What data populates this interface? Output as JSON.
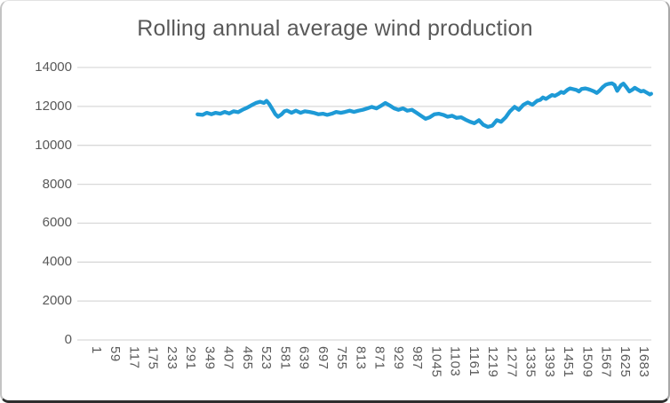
{
  "chart_data": {
    "type": "line",
    "title": "Rolling annual average wind production",
    "xlabel": "",
    "ylabel": "",
    "legend": "none",
    "grid": "horizontal",
    "line_color": "#1E9AD6",
    "grid_color": "#D9D9D9",
    "axis_text_color": "#595959",
    "title_color": "#595959",
    "x_axis": {
      "type": "category",
      "count": 1740,
      "tick_labels": [
        "1",
        "59",
        "117",
        "175",
        "233",
        "291",
        "349",
        "407",
        "465",
        "523",
        "581",
        "639",
        "697",
        "755",
        "813",
        "871",
        "929",
        "987",
        "1045",
        "1103",
        "1161",
        "1219",
        "1277",
        "1335",
        "1393",
        "1451",
        "1509",
        "1567",
        "1625",
        "1683"
      ]
    },
    "y_axis": {
      "min": 0,
      "max": 14000,
      "step": 2000,
      "tick_labels": [
        "0",
        "2000",
        "4000",
        "6000",
        "8000",
        "10000",
        "12000",
        "14000"
      ]
    },
    "series": [
      {
        "name": "Rolling annual average wind production",
        "points": [
          [
            365,
            11590
          ],
          [
            380,
            11565
          ],
          [
            393,
            11670
          ],
          [
            407,
            11595
          ],
          [
            420,
            11670
          ],
          [
            434,
            11625
          ],
          [
            447,
            11715
          ],
          [
            461,
            11640
          ],
          [
            474,
            11745
          ],
          [
            488,
            11700
          ],
          [
            501,
            11825
          ],
          [
            515,
            11930
          ],
          [
            528,
            12055
          ],
          [
            542,
            12175
          ],
          [
            555,
            12240
          ],
          [
            566,
            12175
          ],
          [
            574,
            12285
          ],
          [
            582,
            12130
          ],
          [
            593,
            11825
          ],
          [
            601,
            11595
          ],
          [
            609,
            11470
          ],
          [
            620,
            11595
          ],
          [
            628,
            11745
          ],
          [
            636,
            11790
          ],
          [
            650,
            11670
          ],
          [
            663,
            11780
          ],
          [
            677,
            11670
          ],
          [
            690,
            11745
          ],
          [
            704,
            11715
          ],
          [
            717,
            11670
          ],
          [
            731,
            11595
          ],
          [
            745,
            11625
          ],
          [
            758,
            11565
          ],
          [
            772,
            11625
          ],
          [
            785,
            11715
          ],
          [
            799,
            11670
          ],
          [
            812,
            11715
          ],
          [
            826,
            11780
          ],
          [
            839,
            11715
          ],
          [
            853,
            11780
          ],
          [
            866,
            11825
          ],
          [
            880,
            11900
          ],
          [
            893,
            11975
          ],
          [
            907,
            11900
          ],
          [
            920,
            12020
          ],
          [
            934,
            12175
          ],
          [
            947,
            12055
          ],
          [
            961,
            11900
          ],
          [
            974,
            11825
          ],
          [
            988,
            11900
          ],
          [
            1001,
            11780
          ],
          [
            1015,
            11825
          ],
          [
            1029,
            11670
          ],
          [
            1042,
            11520
          ],
          [
            1056,
            11365
          ],
          [
            1069,
            11440
          ],
          [
            1083,
            11595
          ],
          [
            1096,
            11625
          ],
          [
            1110,
            11565
          ],
          [
            1123,
            11470
          ],
          [
            1137,
            11520
          ],
          [
            1150,
            11410
          ],
          [
            1164,
            11440
          ],
          [
            1177,
            11320
          ],
          [
            1191,
            11210
          ],
          [
            1204,
            11135
          ],
          [
            1218,
            11290
          ],
          [
            1231,
            11060
          ],
          [
            1245,
            10950
          ],
          [
            1258,
            11010
          ],
          [
            1272,
            11290
          ],
          [
            1285,
            11210
          ],
          [
            1299,
            11440
          ],
          [
            1312,
            11745
          ],
          [
            1326,
            11975
          ],
          [
            1339,
            11825
          ],
          [
            1353,
            12085
          ],
          [
            1366,
            12205
          ],
          [
            1380,
            12085
          ],
          [
            1394,
            12285
          ],
          [
            1404,
            12340
          ],
          [
            1412,
            12460
          ],
          [
            1421,
            12385
          ],
          [
            1431,
            12495
          ],
          [
            1440,
            12585
          ],
          [
            1448,
            12540
          ],
          [
            1459,
            12645
          ],
          [
            1467,
            12740
          ],
          [
            1475,
            12690
          ],
          [
            1486,
            12845
          ],
          [
            1494,
            12925
          ],
          [
            1502,
            12890
          ],
          [
            1513,
            12845
          ],
          [
            1521,
            12770
          ],
          [
            1529,
            12890
          ],
          [
            1540,
            12925
          ],
          [
            1548,
            12890
          ],
          [
            1556,
            12845
          ],
          [
            1567,
            12770
          ],
          [
            1575,
            12690
          ],
          [
            1583,
            12800
          ],
          [
            1594,
            13000
          ],
          [
            1602,
            13110
          ],
          [
            1610,
            13155
          ],
          [
            1621,
            13185
          ],
          [
            1629,
            13100
          ],
          [
            1637,
            12800
          ],
          [
            1648,
            13080
          ],
          [
            1656,
            13170
          ],
          [
            1664,
            13000
          ],
          [
            1674,
            12770
          ],
          [
            1682,
            12845
          ],
          [
            1690,
            12955
          ],
          [
            1701,
            12845
          ],
          [
            1709,
            12770
          ],
          [
            1717,
            12800
          ],
          [
            1728,
            12690
          ],
          [
            1736,
            12615
          ],
          [
            1740,
            12650
          ]
        ]
      }
    ]
  }
}
